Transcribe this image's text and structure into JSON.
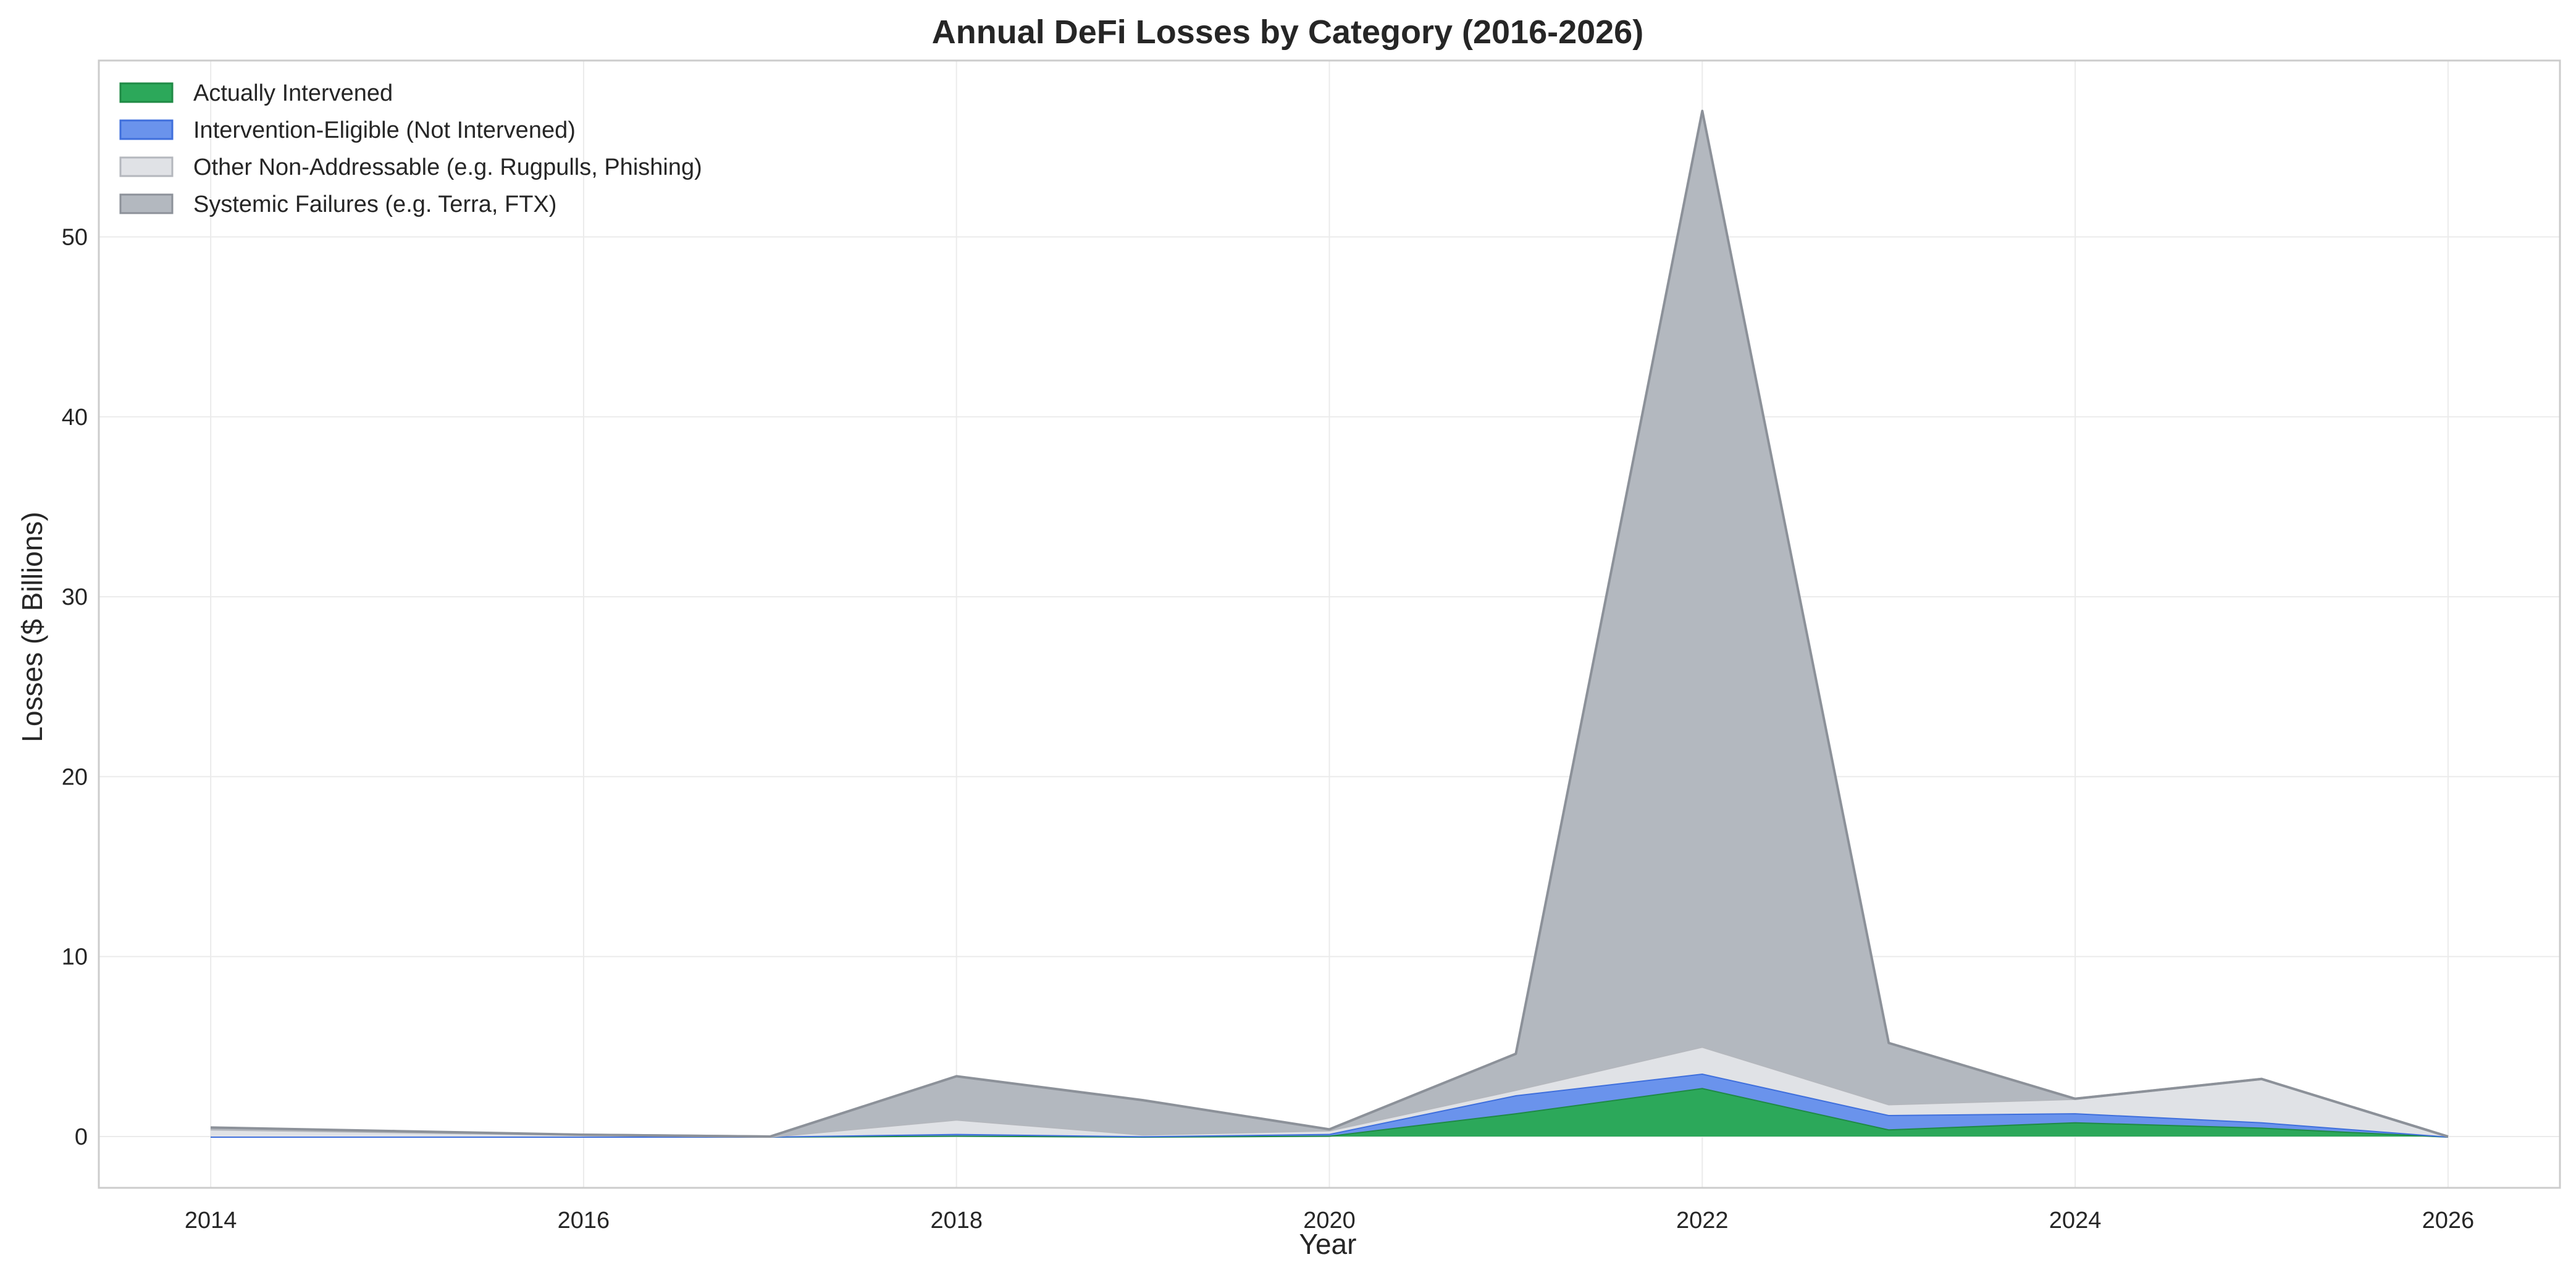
{
  "chart_data": {
    "type": "area",
    "stacked": true,
    "title": "Annual DeFi Losses by Category (2016-2026)",
    "xlabel": "Year",
    "ylabel": "Losses ($ Billions)",
    "xlim": [
      2013.4,
      2026.6
    ],
    "ylim": [
      -2.85,
      59.8
    ],
    "xticks": [
      2014,
      2016,
      2018,
      2020,
      2022,
      2024,
      2026
    ],
    "yticks": [
      0,
      10,
      20,
      30,
      40,
      50
    ],
    "grid": true,
    "legend_position": "top-left",
    "x": [
      2014,
      2015,
      2016,
      2017,
      2018,
      2019,
      2020,
      2021,
      2022,
      2023,
      2024,
      2025,
      2026
    ],
    "series": [
      {
        "name": "Actually Intervened",
        "color": "#2ca85a",
        "edge": "#1f8a45",
        "values": [
          0.0,
          0.0,
          0.0,
          0.0,
          0.05,
          0.0,
          0.05,
          1.3,
          2.7,
          0.4,
          0.8,
          0.5,
          0.0
        ]
      },
      {
        "name": "Intervention-Eligible (Not Intervened)",
        "color": "#6a93ec",
        "edge": "#3f6fdc",
        "values": [
          0.0,
          0.0,
          0.0,
          0.0,
          0.1,
          0.02,
          0.1,
          1.0,
          0.8,
          0.8,
          0.5,
          0.3,
          0.0
        ]
      },
      {
        "name": "Other Non-Addressable (e.g. Rugpulls, Phishing)",
        "color": "#e0e2e6",
        "edge": "#b4b7bd",
        "values": [
          0.4,
          0.25,
          0.1,
          0.0,
          0.8,
          0.1,
          0.2,
          0.3,
          1.5,
          0.6,
          0.8,
          2.4,
          0.0
        ]
      },
      {
        "name": "Systemic Failures (e.g. Terra, FTX)",
        "color": "#b3b8bf",
        "edge": "#8c9199",
        "values": [
          0.1,
          0.05,
          0.0,
          0.0,
          2.4,
          1.9,
          0.05,
          2.0,
          52.0,
          3.4,
          0.0,
          0.0,
          0.0
        ]
      }
    ]
  }
}
